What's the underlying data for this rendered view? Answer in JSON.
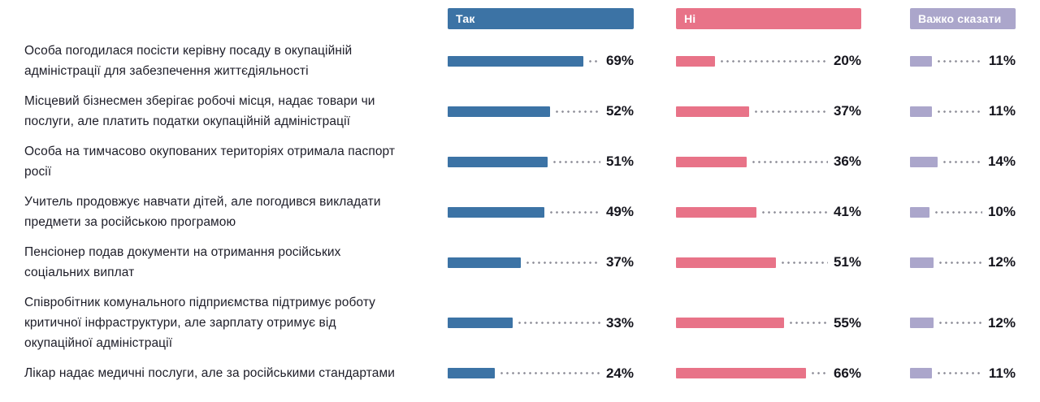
{
  "chart_data": {
    "type": "bar",
    "orientation": "horizontal",
    "unit": "%",
    "value_labels": true,
    "legend_position": "top",
    "xlim": [
      0,
      100
    ],
    "grid": false,
    "categories": [
      "Особа погодилася посісти керівну посаду в окупаційній адміністрації для забезпечення життєдіяльності",
      "Місцевий бізнесмен зберігає робочі місця, надає товари чи послуги, але платить податки окупаційній адміністрації",
      "Особа на тимчасово окупованих територіях отримала паспорт росії",
      "Учитель продовжує навчати дітей, але погодився викладати предмети за російською програмою",
      "Пенсіонер подав документи на отримання російських соціальних виплат",
      "Співробітник комунального підприємства підтримує роботу критичної інфраструктури, але зарплату отримує від окупаційної адміністрації",
      "Лікар надає медичні послуги, але за російськими стандартами"
    ],
    "series": [
      {
        "name": "Так",
        "color": "#3c73a5",
        "values": [
          69,
          52,
          51,
          49,
          37,
          33,
          24
        ]
      },
      {
        "name": "Ні",
        "color": "#e87388",
        "values": [
          20,
          37,
          36,
          41,
          51,
          55,
          66
        ]
      },
      {
        "name": "Важко сказати",
        "color": "#aba6cb",
        "values": [
          11,
          11,
          14,
          10,
          12,
          12,
          11
        ]
      }
    ],
    "style_colors": {
      "text": "#1d1d28",
      "value_labels": "#15151d",
      "leader_dots": "#8f8f99",
      "background": "#ffffff"
    }
  }
}
